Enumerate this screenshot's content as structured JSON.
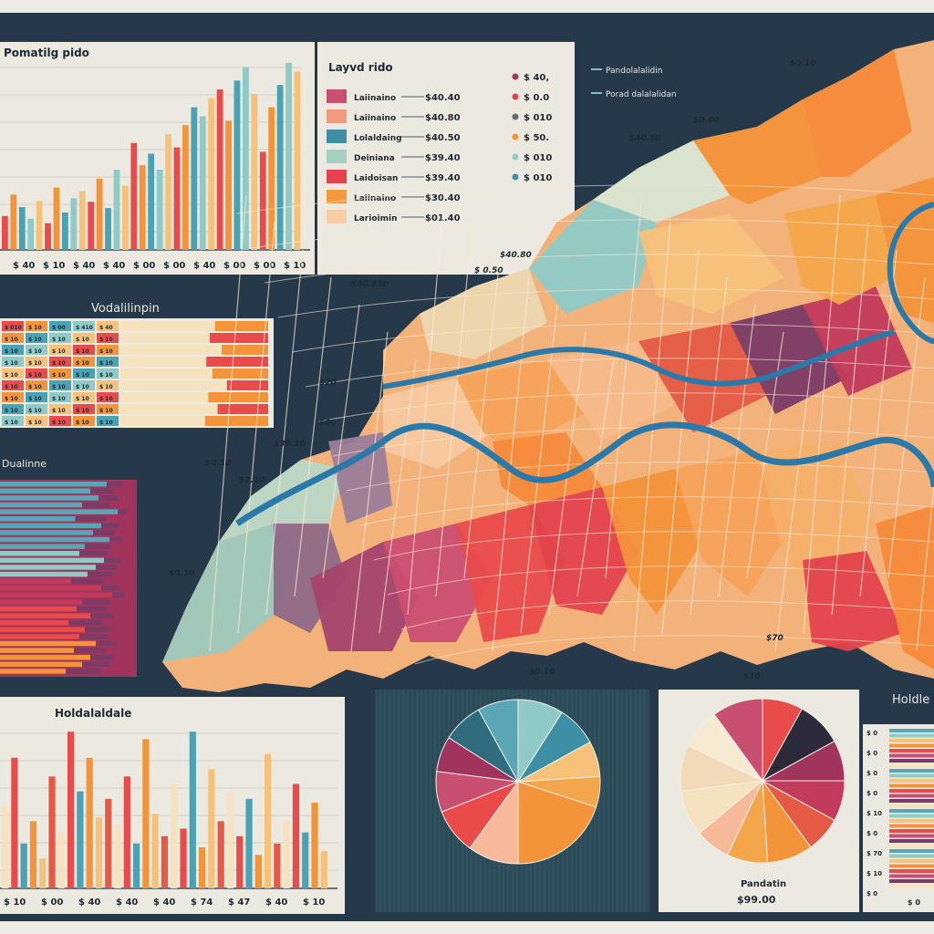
{
  "poster": {
    "bg": "#26394a",
    "frame": "#ecebe6"
  },
  "palette": [
    "#e94b4b",
    "#f3943b",
    "#f6c27a",
    "#4aa3b5",
    "#8fcac7",
    "#a0345d",
    "#f5e3c0",
    "#e45a45",
    "#c23a5c",
    "#7a3b65"
  ],
  "titles": {
    "top_bar": "Pomatilg pido",
    "legend": "Layvd rido",
    "hbars": "Vodalilinpin",
    "stack": "Dualinne",
    "bottom_bar": "Holdalaldale",
    "right_table": "Holdle",
    "pie_right": "Pandatin"
  },
  "legend": {
    "items": [
      {
        "label": "Laiinaino",
        "value": "$40.40",
        "color": "#c94f72"
      },
      {
        "label": "Laiinaino",
        "value": "$40.80",
        "color": "#f19b7e"
      },
      {
        "label": "Lolaldaing",
        "value": "$40.50",
        "color": "#3d8fa3"
      },
      {
        "label": "Deiniana",
        "value": "$39.40",
        "color": "#a7cfc2"
      },
      {
        "label": "Laidoisan",
        "value": "$39.40",
        "color": "#e2434c"
      },
      {
        "label": "Laiinaino",
        "value": "$30.40",
        "color": "#f59a3c"
      },
      {
        "label": "Larioimin",
        "value": "$01.40",
        "color": "#f6cfa6"
      }
    ],
    "values2": [
      {
        "value": "$ 40,",
        "color": "#9b3b5e"
      },
      {
        "value": "$ 0.0",
        "color": "#e2434c"
      },
      {
        "value": "$ 010",
        "color": "#5d6f7a"
      },
      {
        "value": "$ 50.",
        "color": "#f3943b"
      },
      {
        "value": "$ 010",
        "color": "#8fcac7"
      },
      {
        "value": "$ 010",
        "color": "#3d8fa3"
      }
    ],
    "lines": [
      {
        "label": "Pandolalalidin"
      },
      {
        "label": "Porad dalalalidan"
      }
    ]
  },
  "map": {
    "labels": [
      "$40.810",
      "$ 0.50",
      "$40.80",
      "$40.50",
      "$0.40",
      "$0.10",
      "$0.10",
      "$30.10",
      "$20",
      "$2.10",
      "$0.10",
      "$0.10",
      "$10",
      "$70",
      "$00",
      "$00",
      "$2.64",
      "$0.80",
      "$0.10",
      "$40.10",
      "$40.10"
    ]
  },
  "chart_data": [
    {
      "type": "bar",
      "title": "Pomatilg pido",
      "tick_labels": [
        "$ 40",
        "$ 10",
        "$ 40",
        "$ 40",
        "$ 00",
        "$ 00",
        "$ 40",
        "$ 00",
        "$ 00",
        "$ 10"
      ],
      "series": [
        {
          "values": [
            38,
            62,
            48,
            35,
            55,
            30,
            70,
            42,
            58,
            66,
            54,
            80,
            47,
            90,
            72,
            120,
            95,
            108,
            90,
            130,
            115,
            140,
            160,
            150,
            170,
            180,
            145,
            190,
            205,
            175,
            110,
            160,
            185,
            210,
            200
          ]
        }
      ],
      "ylim": [
        0,
        220
      ]
    },
    {
      "type": "bar",
      "title": "Vodalilinpin",
      "orientation": "horizontal",
      "rows": [
        {
          "cells": [
            "$ 010",
            "$ 10",
            "$ 00",
            "$ 410",
            "$ 40"
          ],
          "value": 0.8
        },
        {
          "cells": [
            "$ 10",
            "$ 10",
            "$ 10",
            "$ 10",
            "$ 10"
          ],
          "value": 0.88
        },
        {
          "cells": [
            "$ 10",
            "$ 10",
            "$ 10",
            "$ 10",
            "$ 10"
          ],
          "value": 0.7
        },
        {
          "cells": [
            "$ 10",
            "$ 10",
            "$ 10",
            "$ 10",
            "$ 10"
          ],
          "value": 0.93
        },
        {
          "cells": [
            "$ 10",
            "$ 10",
            "$ 10",
            "$ 10",
            "$ 10"
          ],
          "value": 0.84
        },
        {
          "cells": [
            "$ 10",
            "$ 10",
            "$ 10",
            "$ 10",
            "$ 10"
          ],
          "value": 0.62
        },
        {
          "cells": [
            "$ 10",
            "$ 10",
            "$ 10",
            "$ 10",
            "$ 10"
          ],
          "value": 0.9
        },
        {
          "cells": [
            "$ 10",
            "$ 10",
            "$ 10",
            "$ 10",
            "$ 10"
          ],
          "value": 0.76
        },
        {
          "cells": [
            "$ 10",
            "$ 10",
            "$ 10",
            "$ 10",
            "$ 10"
          ],
          "value": 0.95
        }
      ]
    },
    {
      "type": "bar",
      "title": "Dualinne",
      "orientation": "horizontal-stacked",
      "values": [
        0.78,
        0.66,
        0.72,
        0.6,
        0.86,
        0.55,
        0.74,
        0.68,
        0.8,
        0.62,
        0.58,
        0.76,
        0.7,
        0.64,
        0.52,
        0.74,
        0.82,
        0.6,
        0.56,
        0.66,
        0.5,
        0.62,
        0.58,
        0.7,
        0.54,
        0.66,
        0.6,
        0.48
      ]
    },
    {
      "type": "bar",
      "title": "Holdalaldale",
      "tick_labels": [
        "$ 10",
        "$ 00",
        "$ 40",
        "$ 40",
        "$ 40",
        "$ 74",
        "$ 47",
        "$ 40",
        "$ 10"
      ],
      "series": [
        {
          "values": [
            110,
            175,
            60,
            90,
            40,
            150,
            75,
            210,
            130,
            175,
            95,
            120,
            85,
            150,
            60,
            200,
            100,
            70,
            140,
            80,
            210,
            55,
            160,
            90,
            130,
            70,
            120,
            45,
            180,
            60,
            90,
            140,
            75,
            115,
            50
          ]
        }
      ],
      "ylim": [
        0,
        220
      ]
    },
    {
      "type": "pie",
      "values": [
        9,
        8,
        7,
        6,
        20,
        10,
        9,
        8,
        7,
        8,
        8
      ],
      "colors": [
        "#8fcac7",
        "#3d8fa3",
        "#f6c27a",
        "#f4a64a",
        "#f3943b",
        "#f6b99a",
        "#e94b4b",
        "#c94f72",
        "#a0345d",
        "#2f6c7e",
        "#5aa6b6"
      ]
    },
    {
      "type": "pie",
      "title": "Pandatin",
      "subtitle": "$99.00",
      "values": [
        8,
        9,
        8,
        8,
        7,
        9,
        8,
        7,
        9,
        9,
        8,
        10
      ],
      "colors": [
        "#e94b4b",
        "#2d2a3b",
        "#a0345d",
        "#c23a5c",
        "#e45a45",
        "#f3943b",
        "#f4a64a",
        "#f6b99a",
        "#f5e3c0",
        "#f2d9b8",
        "#f7ead3",
        "#c94f72"
      ]
    },
    {
      "type": "table",
      "title": "Holdle",
      "row_labels": [
        "$ 0",
        "$ 0",
        "$ 0",
        "$ 0",
        "$ 10",
        "$ 0",
        "$ 70",
        "$ 10",
        "$ 0"
      ],
      "rows": 32
    }
  ]
}
